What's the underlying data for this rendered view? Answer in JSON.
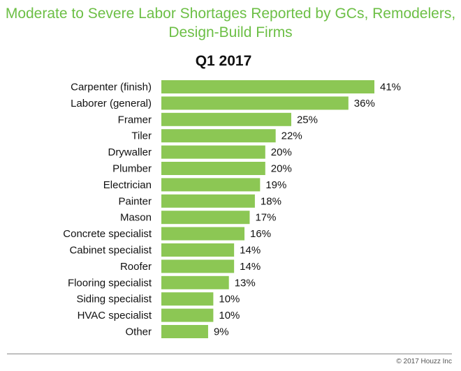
{
  "chart_data": {
    "type": "bar",
    "orientation": "horizontal",
    "title": "Moderate to Severe Labor Shortages Reported by GCs, Remodelers, Design-Build Firms",
    "subtitle": "Q1 2017",
    "categories": [
      "Carpenter (finish)",
      "Laborer (general)",
      "Framer",
      "Tiler",
      "Drywaller",
      "Plumber",
      "Electrician",
      "Painter",
      "Mason",
      "Concrete specialist",
      "Cabinet specialist",
      "Roofer",
      "Flooring specialist",
      "Siding specialist",
      "HVAC specialist",
      "Other"
    ],
    "values": [
      41,
      36,
      25,
      22,
      20,
      20,
      19,
      18,
      17,
      16,
      14,
      14,
      13,
      10,
      10,
      9
    ],
    "value_suffix": "%",
    "xlim": [
      0,
      41
    ],
    "grid": false,
    "bar_color": "#8cc754",
    "title_color": "#6cbf45"
  },
  "footer": {
    "copyright": "© 2017 Houzz Inc"
  }
}
